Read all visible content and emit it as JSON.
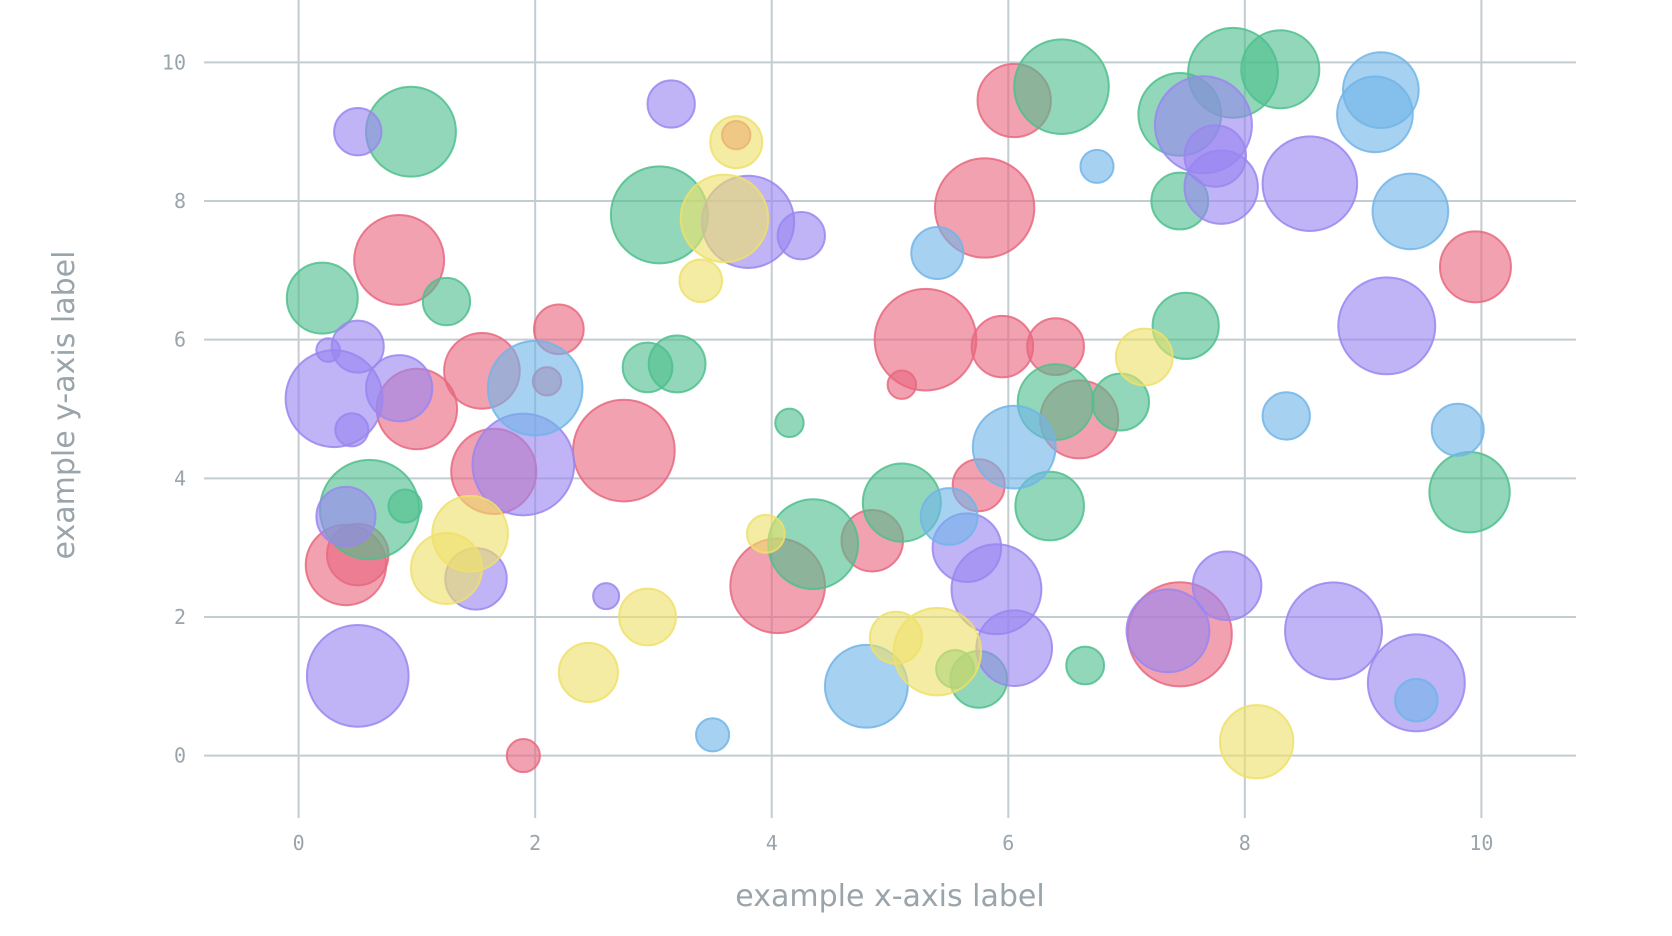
{
  "chart_data": {
    "type": "scatter",
    "title": "",
    "xlabel": "example x-axis label",
    "ylabel": "example y-axis label",
    "xlim": [
      -0.8,
      10.8
    ],
    "ylim": [
      -0.9,
      10.9
    ],
    "xticks": [
      0,
      2,
      4,
      6,
      8,
      10
    ],
    "yticks": [
      0,
      2,
      4,
      6,
      8,
      10
    ],
    "xtick_labels": [
      "0",
      "2",
      "4",
      "6",
      "8",
      "10"
    ],
    "ytick_labels": [
      "0",
      "2",
      "4",
      "6",
      "8",
      "10"
    ],
    "grid": true,
    "legend": "none",
    "series": [
      {
        "color": "#e8687f",
        "points": [
          {
            "x": 1.9,
            "y": 0.0,
            "r": 0.14
          },
          {
            "x": 0.4,
            "y": 2.75,
            "r": 0.34
          },
          {
            "x": 0.5,
            "y": 2.9,
            "r": 0.26
          },
          {
            "x": 0.85,
            "y": 7.15,
            "r": 0.38
          },
          {
            "x": 1.0,
            "y": 5.0,
            "r": 0.34
          },
          {
            "x": 1.55,
            "y": 5.55,
            "r": 0.32
          },
          {
            "x": 1.65,
            "y": 4.1,
            "r": 0.36
          },
          {
            "x": 2.1,
            "y": 5.4,
            "r": 0.12
          },
          {
            "x": 2.2,
            "y": 6.15,
            "r": 0.21
          },
          {
            "x": 2.75,
            "y": 4.4,
            "r": 0.43
          },
          {
            "x": 3.7,
            "y": 8.95,
            "r": 0.12
          },
          {
            "x": 4.05,
            "y": 2.45,
            "r": 0.4
          },
          {
            "x": 4.85,
            "y": 3.1,
            "r": 0.26
          },
          {
            "x": 5.1,
            "y": 5.35,
            "r": 0.12
          },
          {
            "x": 5.3,
            "y": 6.0,
            "r": 0.43
          },
          {
            "x": 5.8,
            "y": 7.9,
            "r": 0.42
          },
          {
            "x": 5.75,
            "y": 3.9,
            "r": 0.22
          },
          {
            "x": 5.95,
            "y": 5.9,
            "r": 0.26
          },
          {
            "x": 6.05,
            "y": 9.45,
            "r": 0.31
          },
          {
            "x": 6.4,
            "y": 5.9,
            "r": 0.24
          },
          {
            "x": 6.6,
            "y": 4.85,
            "r": 0.33
          },
          {
            "x": 7.45,
            "y": 1.75,
            "r": 0.44
          },
          {
            "x": 9.95,
            "y": 7.05,
            "r": 0.3
          }
        ]
      },
      {
        "color": "#4fbf8e",
        "points": [
          {
            "x": 0.2,
            "y": 6.6,
            "r": 0.3
          },
          {
            "x": 0.6,
            "y": 3.55,
            "r": 0.42
          },
          {
            "x": 0.9,
            "y": 3.6,
            "r": 0.14
          },
          {
            "x": 0.95,
            "y": 9.0,
            "r": 0.38
          },
          {
            "x": 1.25,
            "y": 6.55,
            "r": 0.2
          },
          {
            "x": 2.95,
            "y": 5.6,
            "r": 0.21
          },
          {
            "x": 3.2,
            "y": 5.65,
            "r": 0.24
          },
          {
            "x": 3.05,
            "y": 7.8,
            "r": 0.41
          },
          {
            "x": 4.15,
            "y": 4.8,
            "r": 0.12
          },
          {
            "x": 4.35,
            "y": 3.05,
            "r": 0.38
          },
          {
            "x": 5.1,
            "y": 3.65,
            "r": 0.33
          },
          {
            "x": 5.55,
            "y": 1.25,
            "r": 0.16
          },
          {
            "x": 5.75,
            "y": 1.1,
            "r": 0.24
          },
          {
            "x": 6.35,
            "y": 3.6,
            "r": 0.29
          },
          {
            "x": 6.4,
            "y": 5.1,
            "r": 0.32
          },
          {
            "x": 6.45,
            "y": 9.65,
            "r": 0.4
          },
          {
            "x": 6.65,
            "y": 1.3,
            "r": 0.16
          },
          {
            "x": 6.95,
            "y": 5.1,
            "r": 0.24
          },
          {
            "x": 7.45,
            "y": 8.0,
            "r": 0.24
          },
          {
            "x": 7.5,
            "y": 6.2,
            "r": 0.28
          },
          {
            "x": 7.45,
            "y": 9.25,
            "r": 0.35
          },
          {
            "x": 7.9,
            "y": 9.85,
            "r": 0.38
          },
          {
            "x": 8.3,
            "y": 9.9,
            "r": 0.33
          },
          {
            "x": 9.9,
            "y": 3.8,
            "r": 0.34
          }
        ]
      },
      {
        "color": "#9a86f0",
        "points": [
          {
            "x": 0.25,
            "y": 5.85,
            "r": 0.1
          },
          {
            "x": 0.3,
            "y": 5.15,
            "r": 0.41
          },
          {
            "x": 0.4,
            "y": 3.45,
            "r": 0.25
          },
          {
            "x": 0.45,
            "y": 4.7,
            "r": 0.14
          },
          {
            "x": 0.5,
            "y": 9.0,
            "r": 0.2
          },
          {
            "x": 0.5,
            "y": 5.9,
            "r": 0.22
          },
          {
            "x": 0.5,
            "y": 1.15,
            "r": 0.43
          },
          {
            "x": 0.85,
            "y": 5.3,
            "r": 0.28
          },
          {
            "x": 1.5,
            "y": 2.55,
            "r": 0.26
          },
          {
            "x": 1.9,
            "y": 4.2,
            "r": 0.43
          },
          {
            "x": 2.6,
            "y": 2.3,
            "r": 0.11
          },
          {
            "x": 3.15,
            "y": 9.4,
            "r": 0.2
          },
          {
            "x": 3.8,
            "y": 7.7,
            "r": 0.39
          },
          {
            "x": 4.25,
            "y": 7.5,
            "r": 0.2
          },
          {
            "x": 5.65,
            "y": 3.0,
            "r": 0.29
          },
          {
            "x": 5.9,
            "y": 2.4,
            "r": 0.38
          },
          {
            "x": 6.05,
            "y": 1.55,
            "r": 0.32
          },
          {
            "x": 7.35,
            "y": 1.8,
            "r": 0.35
          },
          {
            "x": 7.65,
            "y": 9.1,
            "r": 0.41
          },
          {
            "x": 7.75,
            "y": 8.65,
            "r": 0.26
          },
          {
            "x": 7.8,
            "y": 8.2,
            "r": 0.31
          },
          {
            "x": 7.85,
            "y": 2.45,
            "r": 0.29
          },
          {
            "x": 8.55,
            "y": 8.25,
            "r": 0.4
          },
          {
            "x": 8.75,
            "y": 1.8,
            "r": 0.41
          },
          {
            "x": 9.2,
            "y": 6.2,
            "r": 0.41
          },
          {
            "x": 9.45,
            "y": 1.05,
            "r": 0.41
          }
        ]
      },
      {
        "color": "#71b5e8",
        "points": [
          {
            "x": 2.0,
            "y": 5.3,
            "r": 0.4
          },
          {
            "x": 3.5,
            "y": 0.3,
            "r": 0.14
          },
          {
            "x": 4.8,
            "y": 1.0,
            "r": 0.35
          },
          {
            "x": 5.4,
            "y": 7.25,
            "r": 0.22
          },
          {
            "x": 5.5,
            "y": 3.45,
            "r": 0.24
          },
          {
            "x": 6.05,
            "y": 4.45,
            "r": 0.35
          },
          {
            "x": 6.75,
            "y": 8.5,
            "r": 0.14
          },
          {
            "x": 8.35,
            "y": 4.9,
            "r": 0.2
          },
          {
            "x": 9.1,
            "y": 9.25,
            "r": 0.32
          },
          {
            "x": 9.15,
            "y": 9.6,
            "r": 0.32
          },
          {
            "x": 9.4,
            "y": 7.85,
            "r": 0.32
          },
          {
            "x": 9.45,
            "y": 0.8,
            "r": 0.18
          },
          {
            "x": 9.8,
            "y": 4.7,
            "r": 0.22
          }
        ]
      },
      {
        "color": "#eee06a",
        "points": [
          {
            "x": 1.25,
            "y": 2.7,
            "r": 0.3
          },
          {
            "x": 1.45,
            "y": 3.2,
            "r": 0.32
          },
          {
            "x": 2.45,
            "y": 1.2,
            "r": 0.25
          },
          {
            "x": 2.95,
            "y": 2.0,
            "r": 0.24
          },
          {
            "x": 3.4,
            "y": 6.85,
            "r": 0.18
          },
          {
            "x": 3.6,
            "y": 7.75,
            "r": 0.37
          },
          {
            "x": 3.7,
            "y": 8.85,
            "r": 0.22
          },
          {
            "x": 3.95,
            "y": 3.2,
            "r": 0.16
          },
          {
            "x": 5.05,
            "y": 1.7,
            "r": 0.22
          },
          {
            "x": 5.4,
            "y": 1.5,
            "r": 0.37
          },
          {
            "x": 7.15,
            "y": 5.75,
            "r": 0.24
          },
          {
            "x": 8.1,
            "y": 0.2,
            "r": 0.31
          }
        ]
      }
    ]
  }
}
